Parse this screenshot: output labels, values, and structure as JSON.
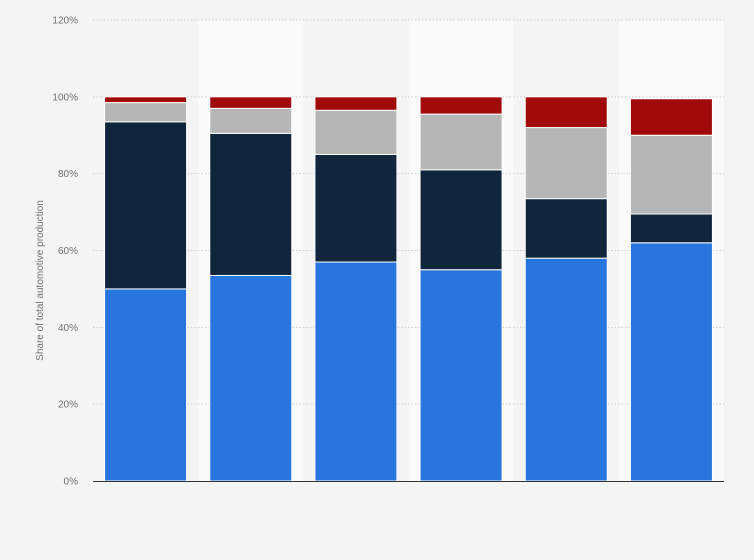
{
  "chart_data": {
    "type": "bar",
    "stacked": true,
    "categories": [
      "",
      "",
      "",
      "",
      "",
      ""
    ],
    "series": [
      {
        "color": "#2876dd",
        "values": [
          50,
          53.5,
          57,
          55,
          58,
          62
        ]
      },
      {
        "color": "#11263d",
        "values": [
          43.5,
          37,
          28,
          26,
          15.5,
          7.5
        ]
      },
      {
        "color": "#b6b6b6",
        "values": [
          5,
          6.5,
          11.5,
          14.5,
          18.5,
          20.5
        ]
      },
      {
        "color": "#a10a0a",
        "values": [
          1.5,
          3,
          3.5,
          4.5,
          8,
          9.5
        ]
      }
    ],
    "ylabel": "Share of total automotive production",
    "ylim": [
      0,
      120
    ],
    "yticks": [
      0,
      20,
      40,
      60,
      80,
      100,
      120
    ],
    "yticks_format": "percent",
    "grid": true,
    "legend": "none"
  }
}
